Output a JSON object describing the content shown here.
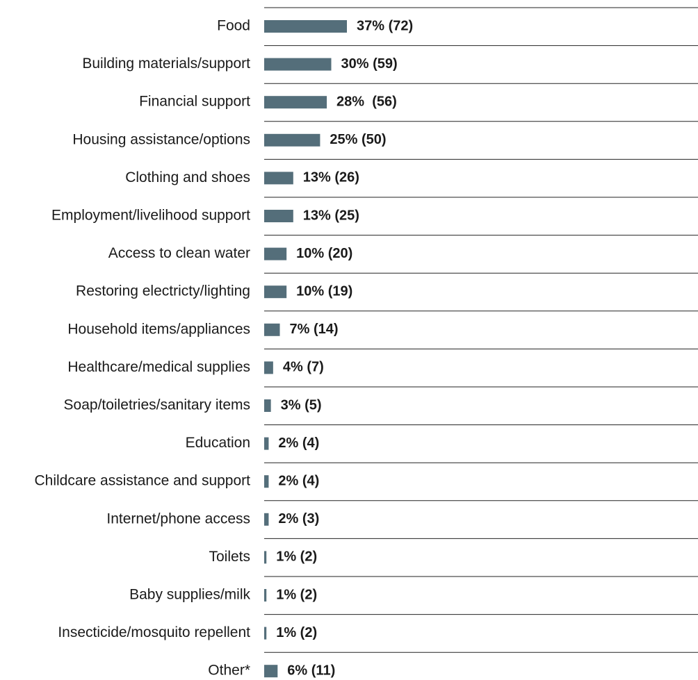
{
  "chart_data": {
    "type": "bar",
    "orientation": "horizontal",
    "categories": [
      "Food",
      "Building materials/support",
      "Financial support",
      "Housing assistance/options",
      "Clothing and shoes",
      "Employment/livelihood support",
      "Access to clean water",
      "Restoring electricty/lighting",
      "Household items/appliances",
      "Healthcare/medical supplies",
      "Soap/toiletries/sanitary items",
      "Education",
      "Childcare assistance and support",
      "Internet/phone access",
      "Toilets",
      "Baby supplies/milk",
      "Insecticide/mosquito repellent",
      "Other*"
    ],
    "values": [
      37,
      30,
      28,
      25,
      13,
      13,
      10,
      10,
      7,
      4,
      3,
      2,
      2,
      2,
      1,
      1,
      1,
      6
    ],
    "counts": [
      72,
      59,
      56,
      50,
      26,
      25,
      20,
      19,
      14,
      7,
      5,
      4,
      4,
      3,
      2,
      2,
      2,
      11
    ],
    "data_labels": [
      "37% (72)",
      "30% (59)",
      "28%  (56)",
      "25% (50)",
      "13% (26)",
      "13% (25)",
      "10% (20)",
      "10% (19)",
      "7% (14)",
      "4% (7)",
      "3% (5)",
      "2% (4)",
      "2% (4)",
      "2% (3)",
      "1% (2)",
      "1% (2)",
      "1% (2)",
      "6% (11)"
    ],
    "unit": "%",
    "xlim": [
      0,
      100
    ],
    "grid": "horizontal separators",
    "legend": "none",
    "colors": {
      "bar": "#546e7a",
      "separator": "#222222"
    }
  }
}
